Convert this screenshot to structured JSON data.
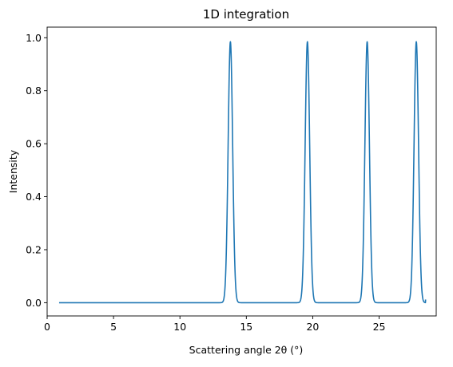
{
  "chart_data": {
    "type": "line",
    "title": "1D integration",
    "xlabel": "Scattering angle 2θ (°)",
    "ylabel": "Intensity",
    "xlim": [
      0,
      29.3
    ],
    "ylim": [
      -0.05,
      1.04
    ],
    "xticks": [
      0,
      5,
      10,
      15,
      20,
      25
    ],
    "xtick_labels": [
      "0",
      "5",
      "10",
      "15",
      "20",
      "25"
    ],
    "yticks": [
      0.0,
      0.2,
      0.4,
      0.6,
      0.8,
      1.0
    ],
    "ytick_labels": [
      "0.0",
      "0.2",
      "0.4",
      "0.6",
      "0.8",
      "1.0"
    ],
    "grid": false,
    "series": [
      {
        "color": "#1f77b4",
        "x_range": [
          0.9,
          28.5
        ],
        "peaks": [
          {
            "center": 13.8,
            "height": 0.985,
            "sigma": 0.17
          },
          {
            "center": 19.6,
            "height": 0.985,
            "sigma": 0.17
          },
          {
            "center": 24.1,
            "height": 0.985,
            "sigma": 0.17
          },
          {
            "center": 27.8,
            "height": 0.985,
            "sigma": 0.17
          }
        ],
        "end_value": 0.012
      }
    ]
  }
}
